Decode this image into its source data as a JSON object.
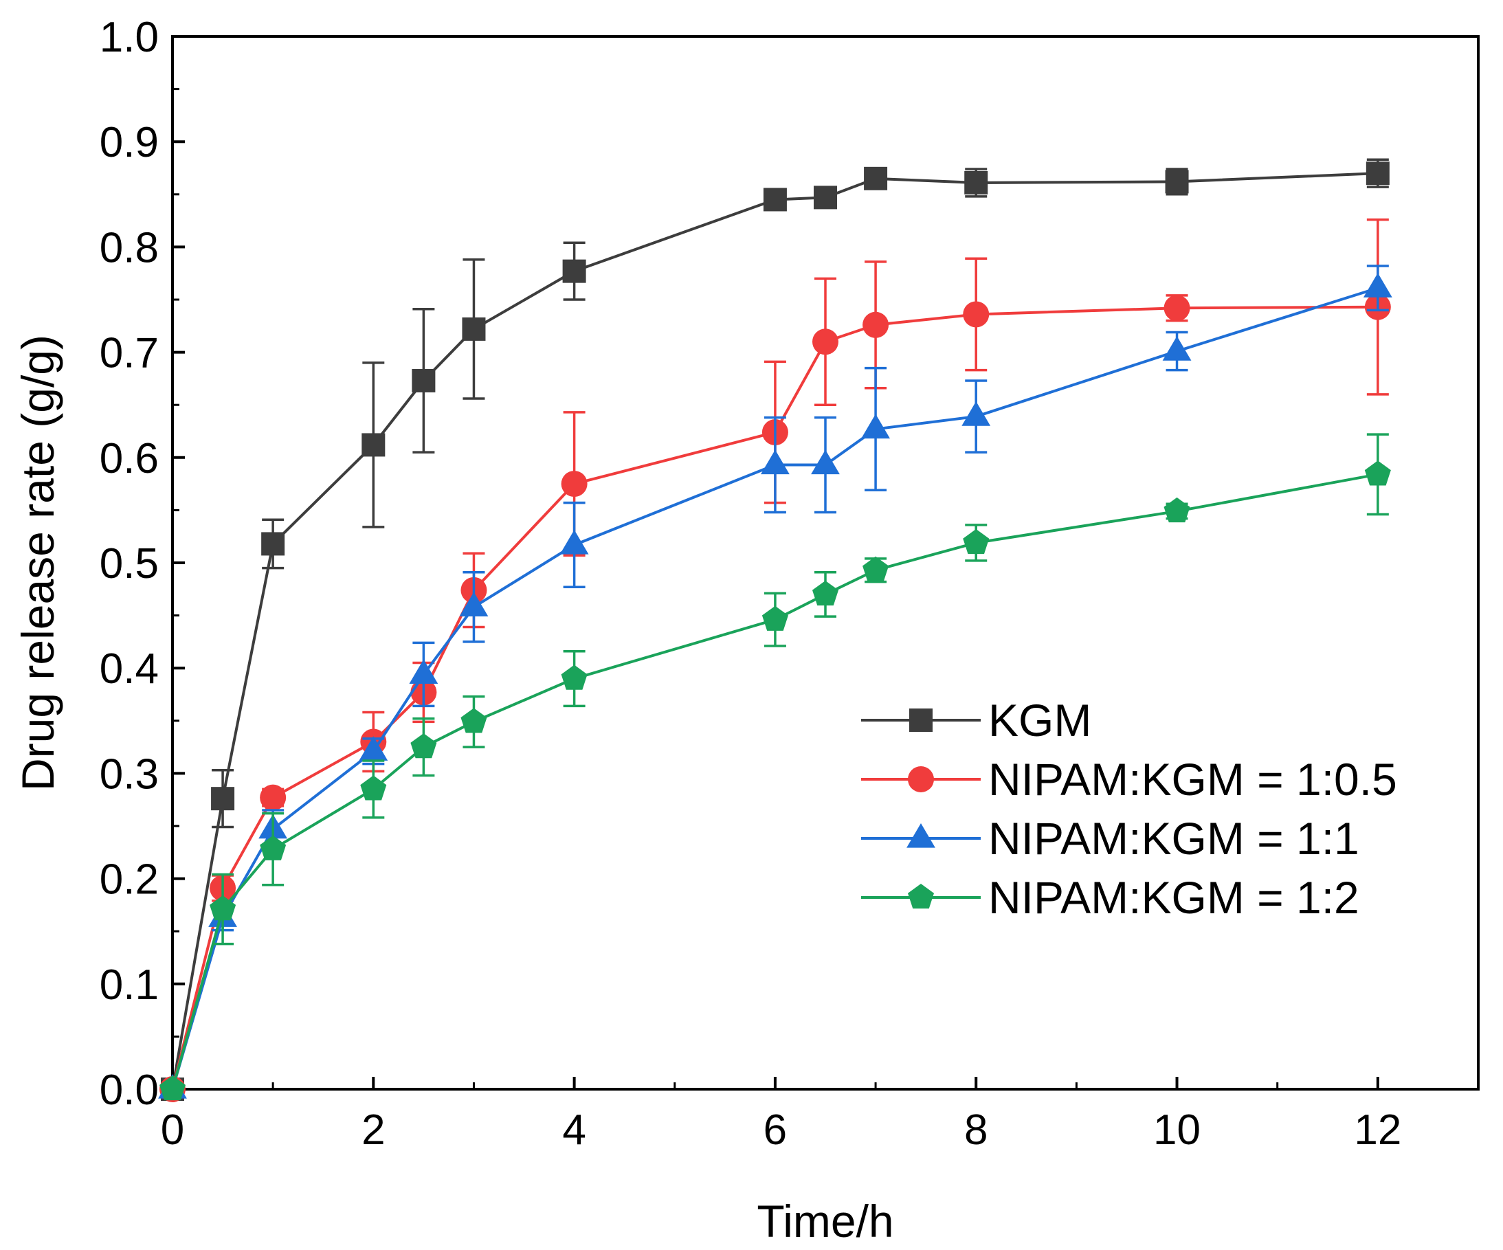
{
  "chart_data": {
    "type": "line",
    "title": "",
    "xlabel": "Time/h",
    "ylabel": "Drug release rate (g/g)",
    "xlim": [
      0,
      13
    ],
    "ylim": [
      0,
      1.0
    ],
    "xticks": [
      "0",
      "2",
      "4",
      "6",
      "8",
      "10",
      "12"
    ],
    "yticks": [
      "0.0",
      "0.1",
      "0.2",
      "0.3",
      "0.4",
      "0.5",
      "0.6",
      "0.7",
      "0.8",
      "0.9",
      "1.0"
    ],
    "grid": false,
    "legend_position": "lower-right",
    "x": [
      0,
      0.5,
      1,
      2,
      2.5,
      3,
      4,
      6,
      6.5,
      7,
      8,
      10,
      12
    ],
    "series": [
      {
        "name": "KGM",
        "color": "#3d3d3d",
        "marker": "square",
        "values": [
          0.0,
          0.276,
          0.518,
          0.612,
          0.673,
          0.722,
          0.777,
          0.845,
          0.847,
          0.865,
          0.861,
          0.862,
          0.87
        ],
        "errors": [
          0.0,
          0.027,
          0.023,
          0.078,
          0.068,
          0.066,
          0.027,
          0.006,
          0.006,
          0.005,
          0.013,
          0.012,
          0.013
        ]
      },
      {
        "name": "NIPAM:KGM = 1:0.5",
        "color": "#f03c3c",
        "marker": "circle",
        "values": [
          0.0,
          0.191,
          0.277,
          0.33,
          0.377,
          0.474,
          0.575,
          0.624,
          0.71,
          0.726,
          0.736,
          0.742,
          0.743
        ],
        "errors": [
          0.0,
          0.012,
          0.008,
          0.028,
          0.028,
          0.035,
          0.068,
          0.067,
          0.06,
          0.06,
          0.053,
          0.012,
          0.083
        ]
      },
      {
        "name": "NIPAM:KGM = 1:1",
        "color": "#1f6fd6",
        "marker": "triangle",
        "values": [
          0.0,
          0.163,
          0.247,
          0.321,
          0.394,
          0.458,
          0.517,
          0.593,
          0.593,
          0.627,
          0.639,
          0.701,
          0.761
        ],
        "errors": [
          0.0,
          0.012,
          0.018,
          0.012,
          0.03,
          0.033,
          0.04,
          0.045,
          0.045,
          0.058,
          0.034,
          0.018,
          0.021
        ]
      },
      {
        "name": "NIPAM:KGM = 1:2",
        "color": "#1aa35a",
        "marker": "pentagon",
        "values": [
          0.0,
          0.171,
          0.228,
          0.285,
          0.325,
          0.349,
          0.39,
          0.446,
          0.47,
          0.493,
          0.519,
          0.549,
          0.584
        ],
        "errors": [
          0.0,
          0.033,
          0.034,
          0.027,
          0.027,
          0.024,
          0.026,
          0.025,
          0.021,
          0.011,
          0.017,
          0.007,
          0.038
        ]
      }
    ]
  }
}
